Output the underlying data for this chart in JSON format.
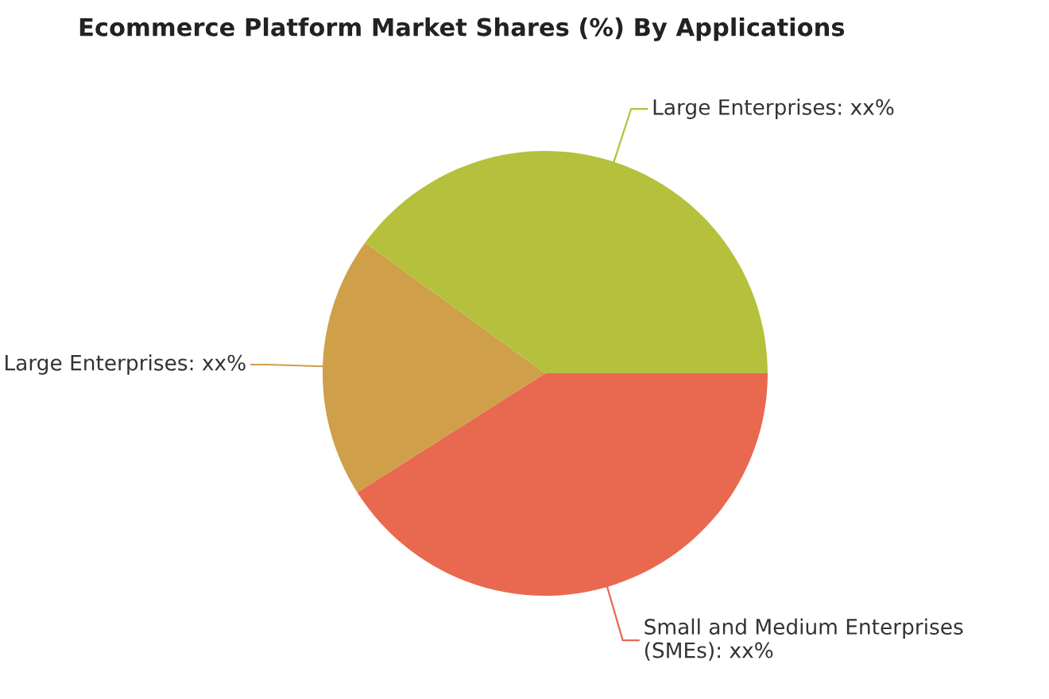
{
  "chart_data": {
    "type": "pie",
    "title": "Ecommerce Platform Market Shares (%) By Applications",
    "categories": [
      "Small and Medium Enterprises (SMEs)",
      "Large Enterprises",
      "Large Enterprises"
    ],
    "values": [
      41,
      19,
      40
    ],
    "value_labels": [
      "xx%",
      "xx%",
      "xx%"
    ],
    "colors": [
      "#e8694f",
      "#cf9f4a",
      "#b5c03c"
    ],
    "legend": false
  }
}
